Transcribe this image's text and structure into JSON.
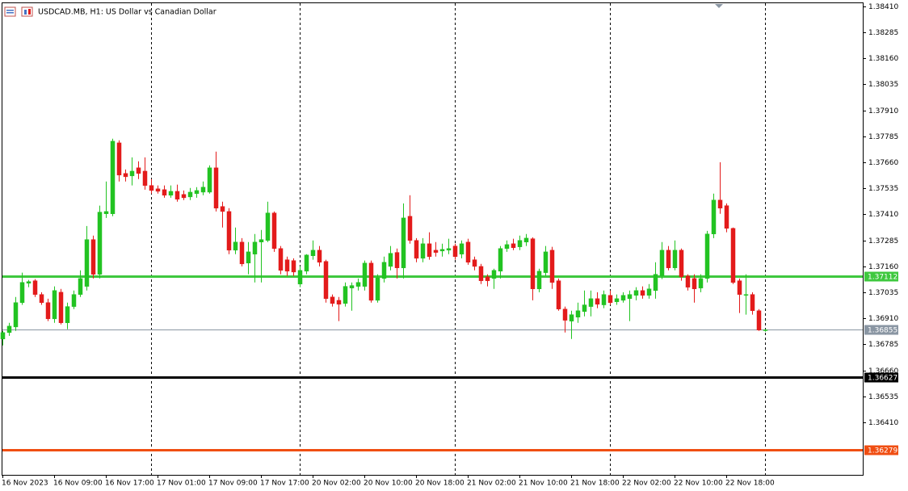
{
  "chart_data": {
    "type": "candlestick",
    "title": "USDCAD.MB, H1:  US Dollar vs Canadian Dollar",
    "categories": [
      "16 Nov 2023",
      null,
      null,
      null,
      null,
      null,
      null,
      null,
      "16 Nov 09:00",
      null,
      null,
      null,
      null,
      null,
      null,
      null,
      "16 Nov 17:00",
      null,
      null,
      null,
      null,
      null,
      null,
      null,
      "17 Nov 01:00",
      null,
      null,
      null,
      null,
      null,
      null,
      null,
      "17 Nov 09:00",
      null,
      null,
      null,
      null,
      null,
      null,
      null,
      "17 Nov 17:00",
      null,
      null,
      null,
      null,
      null,
      null,
      null,
      "20 Nov 02:00",
      null,
      null,
      null,
      null,
      null,
      null,
      null,
      "20 Nov 10:00",
      null,
      null,
      null,
      null,
      null,
      null,
      null,
      "20 Nov 18:00",
      null,
      null,
      null,
      null,
      null,
      null,
      null,
      "21 Nov 02:00",
      null,
      null,
      null,
      null,
      null,
      null,
      null,
      "21 Nov 10:00",
      null,
      null,
      null,
      null,
      null,
      null,
      null,
      "21 Nov 18:00",
      null,
      null,
      null,
      null,
      null,
      null,
      null,
      "22 Nov 02:00",
      null,
      null,
      null,
      null,
      null,
      null,
      null,
      "22 Nov 10:00",
      null,
      null,
      null,
      null,
      null,
      null,
      null,
      "22 Nov 18:00",
      null,
      null,
      null,
      null,
      null,
      null
    ],
    "open": [
      1.36811,
      1.36842,
      1.36869,
      1.36986,
      1.37079,
      1.37091,
      1.37025,
      1.36986,
      1.36908,
      1.37036,
      1.36889,
      1.36967,
      1.37025,
      1.37064,
      1.37289,
      1.37122,
      1.37413,
      1.37413,
      1.37754,
      1.37607,
      1.37595,
      1.37634,
      1.37618,
      1.37549,
      1.37533,
      1.37529,
      1.37502,
      1.37521,
      1.37506,
      1.37494,
      1.3751,
      1.37517,
      1.37517,
      1.37634,
      1.37448,
      1.37424,
      1.37238,
      1.37277,
      1.37176,
      1.37219,
      1.37277,
      1.37285,
      1.37417,
      1.37246,
      1.37192,
      1.37188,
      1.37075,
      1.37137,
      1.37211,
      1.37238,
      1.37184,
      1.37013,
      1.36997,
      1.36982,
      1.37056,
      1.37064,
      1.37064,
      1.37176,
      1.36997,
      1.37102,
      1.3716,
      1.37227,
      1.37153,
      1.37401,
      1.37285,
      1.37199,
      1.37269,
      1.37238,
      1.37234,
      1.37238,
      1.37258,
      1.37219,
      1.37277,
      1.37192,
      1.3716,
      1.3711,
      1.37102,
      1.37137,
      1.37246,
      1.37269,
      1.37254,
      1.37277,
      1.37293,
      1.37052,
      1.3713,
      1.37238,
      1.37091,
      1.36955,
      1.36897,
      1.36916,
      1.36943,
      1.36967,
      1.37005,
      1.36975,
      1.37021,
      1.3699,
      1.36997,
      1.37005,
      1.37021,
      1.37044,
      1.37021,
      1.37044,
      1.37114,
      1.37238,
      1.37153,
      1.37238,
      1.37114,
      1.37102,
      1.37056,
      1.37102,
      1.37316,
      1.37479,
      1.37452,
      1.37343,
      1.37091,
      1.37021,
      1.37025,
      1.36947,
      1.36854
    ],
    "high": [
      1.3685,
      1.36889,
      1.37013,
      1.3713,
      1.37095,
      1.37099,
      1.37036,
      1.37005,
      1.37064,
      1.37052,
      1.36986,
      1.37044,
      1.37141,
      1.37354,
      1.37308,
      1.37452,
      1.37568,
      1.37774,
      1.37766,
      1.37626,
      1.37684,
      1.37665,
      1.37684,
      1.3758,
      1.37549,
      1.37549,
      1.37549,
      1.37553,
      1.37525,
      1.37537,
      1.37541,
      1.37568,
      1.37646,
      1.37712,
      1.37471,
      1.3744,
      1.37347,
      1.37296,
      1.37277,
      1.37316,
      1.37335,
      1.37471,
      1.37424,
      1.37258,
      1.37207,
      1.37199,
      1.3716,
      1.37219,
      1.37285,
      1.37258,
      1.37192,
      1.37025,
      1.37013,
      1.37083,
      1.37083,
      1.37102,
      1.37188,
      1.37188,
      1.37122,
      1.37207,
      1.37258,
      1.37246,
      1.37463,
      1.37502,
      1.37296,
      1.37296,
      1.37324,
      1.37277,
      1.37269,
      1.37293,
      1.37269,
      1.37285,
      1.37293,
      1.37207,
      1.37172,
      1.37122,
      1.37149,
      1.37258,
      1.37285,
      1.37293,
      1.37308,
      1.37316,
      1.373,
      1.37149,
      1.37258,
      1.37254,
      1.37102,
      1.36967,
      1.36947,
      1.36986,
      1.37044,
      1.37044,
      1.37036,
      1.37044,
      1.37044,
      1.37025,
      1.37036,
      1.37044,
      1.3706,
      1.37064,
      1.37075,
      1.3718,
      1.37277,
      1.37258,
      1.37285,
      1.37246,
      1.37122,
      1.37122,
      1.37122,
      1.37331,
      1.3751,
      1.37661,
      1.37463,
      1.37347,
      1.37102,
      1.37122,
      1.37036,
      1.36955,
      1.36858
    ],
    "low": [
      1.3678,
      1.36826,
      1.3685,
      1.36975,
      1.3706,
      1.37013,
      1.36975,
      1.36897,
      1.36889,
      1.36881,
      1.36858,
      1.36955,
      1.37013,
      1.37044,
      1.37102,
      1.37102,
      1.37393,
      1.37401,
      1.37568,
      1.37568,
      1.37549,
      1.3758,
      1.37529,
      1.3751,
      1.3751,
      1.3749,
      1.3749,
      1.37471,
      1.37479,
      1.37479,
      1.3749,
      1.37502,
      1.3751,
      1.37424,
      1.37347,
      1.37219,
      1.37219,
      1.3716,
      1.37122,
      1.37083,
      1.37083,
      1.37277,
      1.3723,
      1.37122,
      1.37114,
      1.37114,
      1.3706,
      1.37122,
      1.37192,
      1.3716,
      1.36986,
      1.36967,
      1.36897,
      1.36967,
      1.36947,
      1.37044,
      1.37044,
      1.36986,
      1.36986,
      1.37083,
      1.37141,
      1.37102,
      1.37102,
      1.37269,
      1.3718,
      1.3718,
      1.37192,
      1.37207,
      1.37207,
      1.37219,
      1.37192,
      1.37199,
      1.37168,
      1.37141,
      1.37075,
      1.37064,
      1.37052,
      1.37102,
      1.3723,
      1.37238,
      1.37238,
      1.37258,
      1.36997,
      1.37036,
      1.37114,
      1.37052,
      1.36947,
      1.36842,
      1.36811,
      1.36889,
      1.3692,
      1.3692,
      1.36959,
      1.36959,
      1.36975,
      1.36975,
      1.36986,
      1.36897,
      1.36997,
      1.37005,
      1.37005,
      1.37005,
      1.37099,
      1.37141,
      1.37141,
      1.37091,
      1.37044,
      1.36986,
      1.37036,
      1.37083,
      1.37296,
      1.37413,
      1.37324,
      1.37075,
      1.36936,
      1.36928,
      1.36928,
      1.3685,
      1.36846
    ],
    "close": [
      1.36842,
      1.36873,
      1.36986,
      1.37083,
      1.37087,
      1.37025,
      1.36986,
      1.36908,
      1.37044,
      1.36889,
      1.36967,
      1.37025,
      1.37102,
      1.37289,
      1.37122,
      1.37421,
      1.37424,
      1.37762,
      1.37599,
      1.37591,
      1.37618,
      1.37607,
      1.37549,
      1.37525,
      1.37521,
      1.37502,
      1.37521,
      1.37483,
      1.3749,
      1.37517,
      1.37525,
      1.37541,
      1.37634,
      1.3744,
      1.37424,
      1.37238,
      1.37277,
      1.37172,
      1.3723,
      1.37277,
      1.37289,
      1.37417,
      1.37246,
      1.37141,
      1.37137,
      1.37133,
      1.37141,
      1.37215,
      1.37238,
      1.3718,
      1.37005,
      1.36982,
      1.36978,
      1.37064,
      1.37068,
      1.37083,
      1.37176,
      1.36997,
      1.37106,
      1.3718,
      1.37223,
      1.37153,
      1.37393,
      1.37285,
      1.37199,
      1.37269,
      1.37207,
      1.37227,
      1.37242,
      1.37246,
      1.37207,
      1.37269,
      1.3718,
      1.3716,
      1.37091,
      1.37091,
      1.37141,
      1.37246,
      1.37265,
      1.3725,
      1.37285,
      1.37296,
      1.37052,
      1.37137,
      1.3723,
      1.37083,
      1.36955,
      1.36901,
      1.36928,
      1.36947,
      1.36975,
      1.37005,
      1.36978,
      1.37025,
      1.36986,
      1.37005,
      1.37021,
      1.37025,
      1.37044,
      1.37021,
      1.37052,
      1.37122,
      1.37238,
      1.37153,
      1.37238,
      1.3711,
      1.3706,
      1.37052,
      1.37102,
      1.37316,
      1.37479,
      1.3744,
      1.37343,
      1.37083,
      1.37025,
      1.37025,
      1.36947,
      1.36854,
      1.36855
    ],
    "up_color": "#22c322",
    "down_color": "#e31b1b",
    "ylim": [
      1.36158,
      1.38429
    ],
    "yticks": [
      {
        "value": 1.3841,
        "label": "1.38410"
      },
      1.38285,
      {
        "value": 1.3816,
        "label": "1.38160"
      },
      1.38035,
      {
        "value": 1.3791,
        "label": "1.37910"
      },
      1.37785,
      {
        "value": 1.3766,
        "label": "1.37660"
      },
      1.37535,
      {
        "value": 1.3741,
        "label": "1.37410"
      },
      1.37285,
      {
        "value": 1.3716,
        "label": "1.37160"
      },
      1.37035,
      {
        "value": 1.3691,
        "label": "1.36910"
      },
      1.36785,
      {
        "value": 1.3666,
        "label": "1.36660"
      },
      1.36535,
      {
        "value": 1.3641,
        "label": "1.36410"
      }
    ],
    "levels": [
      {
        "price": 1.37112,
        "color": "#3ec83e"
      },
      {
        "price": 1.36855,
        "color": "#8a96a3"
      },
      {
        "price": 1.36627,
        "color": "#000000"
      },
      {
        "price": 1.36279,
        "color": "#f04e12"
      }
    ]
  }
}
